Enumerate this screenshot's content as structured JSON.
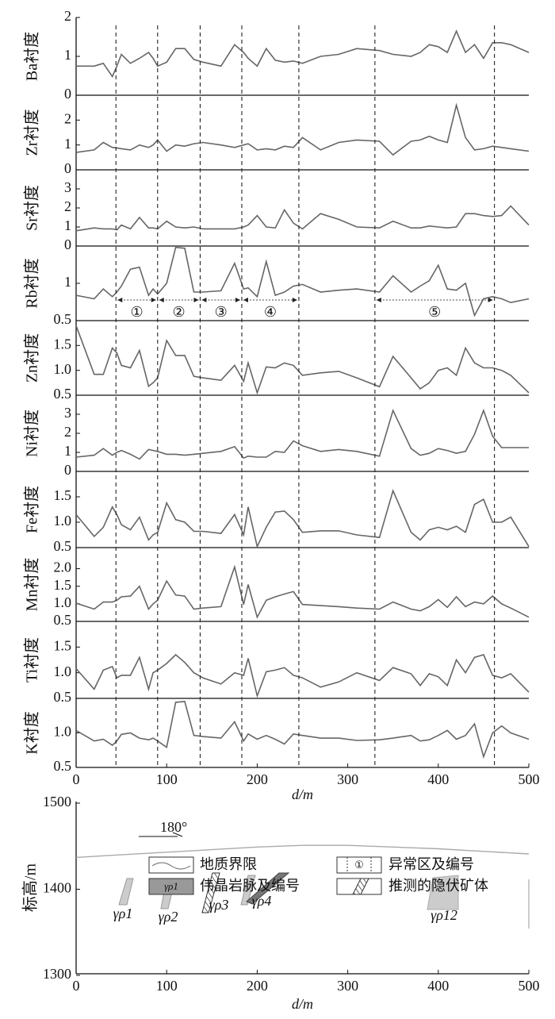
{
  "chart_data": [
    {
      "type": "line",
      "ylabel": "Ba衬度",
      "xlim": [
        0,
        500
      ],
      "ylim": [
        0,
        2
      ],
      "yticks": [
        0,
        1,
        2
      ],
      "color": "#666666",
      "x": [
        0,
        20,
        30,
        40,
        45,
        50,
        60,
        70,
        80,
        85,
        90,
        100,
        110,
        120,
        130,
        140,
        160,
        175,
        185,
        190,
        200,
        210,
        220,
        230,
        240,
        250,
        270,
        290,
        310,
        335,
        350,
        370,
        380,
        390,
        400,
        410,
        420,
        430,
        440,
        450,
        460,
        470,
        480,
        500
      ],
      "values": [
        0.75,
        0.75,
        0.82,
        0.48,
        0.75,
        1.05,
        0.82,
        0.95,
        1.1,
        0.95,
        0.75,
        0.85,
        1.2,
        1.2,
        0.92,
        0.85,
        0.75,
        1.3,
        1.1,
        0.95,
        0.75,
        1.2,
        0.9,
        0.85,
        0.88,
        0.82,
        1.0,
        1.05,
        1.2,
        1.15,
        1.05,
        1.0,
        1.1,
        1.3,
        1.25,
        1.1,
        1.65,
        1.1,
        1.3,
        0.95,
        1.35,
        1.35,
        1.3,
        1.1
      ]
    },
    {
      "type": "line",
      "ylabel": "Zr衬度",
      "xlim": [
        0,
        500
      ],
      "ylim": [
        0,
        3
      ],
      "yticks": [
        0,
        1,
        2
      ],
      "color": "#666666",
      "x": [
        0,
        20,
        30,
        40,
        45,
        50,
        60,
        70,
        80,
        85,
        90,
        100,
        110,
        120,
        130,
        140,
        160,
        175,
        185,
        190,
        200,
        210,
        220,
        230,
        240,
        250,
        270,
        290,
        310,
        335,
        350,
        370,
        380,
        390,
        400,
        410,
        420,
        430,
        440,
        450,
        460,
        470,
        480,
        500
      ],
      "values": [
        0.7,
        0.8,
        1.1,
        0.9,
        0.88,
        0.85,
        0.8,
        1.0,
        0.9,
        1.0,
        1.2,
        0.75,
        1.0,
        0.95,
        1.05,
        1.1,
        1.0,
        0.9,
        1.0,
        1.05,
        0.8,
        0.85,
        0.8,
        0.95,
        0.9,
        1.3,
        0.8,
        1.1,
        1.2,
        1.15,
        0.6,
        1.15,
        1.2,
        1.35,
        1.2,
        1.1,
        2.6,
        1.3,
        0.8,
        0.85,
        0.95,
        0.9,
        0.85,
        0.75
      ]
    },
    {
      "type": "line",
      "ylabel": "Sr衬度",
      "xlim": [
        0,
        500
      ],
      "ylim": [
        0,
        4
      ],
      "yticks": [
        0,
        1,
        2,
        3
      ],
      "color": "#666666",
      "x": [
        0,
        20,
        30,
        40,
        45,
        50,
        60,
        70,
        80,
        85,
        90,
        100,
        110,
        120,
        130,
        140,
        160,
        175,
        185,
        190,
        200,
        210,
        220,
        230,
        240,
        250,
        270,
        290,
        310,
        335,
        350,
        370,
        380,
        390,
        400,
        410,
        420,
        430,
        440,
        450,
        460,
        470,
        480,
        500
      ],
      "values": [
        0.8,
        0.95,
        0.9,
        0.9,
        0.85,
        1.1,
        0.9,
        1.5,
        0.95,
        0.95,
        0.9,
        1.3,
        1.0,
        0.95,
        1.0,
        0.9,
        0.9,
        0.9,
        1.0,
        1.1,
        1.6,
        1.0,
        0.95,
        1.9,
        1.2,
        0.9,
        1.7,
        1.4,
        1.0,
        0.95,
        1.3,
        0.95,
        0.95,
        1.05,
        1.0,
        0.95,
        1.0,
        1.7,
        1.7,
        1.6,
        1.55,
        1.6,
        2.1,
        1.1
      ]
    },
    {
      "type": "line",
      "ylabel": "Rb衬度",
      "log": true,
      "xlim": [
        0,
        500
      ],
      "ylim": [
        0.5,
        2
      ],
      "yticks": [
        0.5,
        1
      ],
      "color": "#666666",
      "x": [
        0,
        20,
        30,
        40,
        45,
        50,
        60,
        70,
        80,
        85,
        90,
        100,
        110,
        120,
        130,
        140,
        160,
        175,
        185,
        190,
        200,
        210,
        220,
        230,
        240,
        250,
        270,
        290,
        310,
        335,
        350,
        370,
        380,
        390,
        400,
        410,
        420,
        430,
        440,
        450,
        460,
        470,
        480,
        500
      ],
      "values": [
        0.8,
        0.75,
        0.9,
        0.78,
        0.85,
        0.95,
        1.3,
        1.35,
        0.8,
        0.9,
        0.82,
        1.0,
        1.95,
        1.92,
        0.85,
        0.85,
        0.87,
        1.45,
        0.9,
        0.92,
        0.78,
        1.5,
        0.8,
        0.85,
        0.95,
        0.98,
        0.85,
        0.88,
        0.9,
        0.85,
        1.15,
        0.85,
        0.95,
        1.05,
        1.4,
        0.9,
        0.88,
        1.0,
        0.55,
        0.75,
        0.78,
        0.75,
        0.7,
        0.75
      ]
    },
    {
      "type": "line",
      "ylabel": "Zn衬度",
      "xlim": [
        0,
        500
      ],
      "ylim": [
        0.5,
        2
      ],
      "yticks": [
        0.5,
        {
          "value": 1,
          "label": "1.0"
        },
        1.5
      ],
      "color": "#666666",
      "x": [
        0,
        20,
        30,
        40,
        45,
        50,
        60,
        70,
        80,
        85,
        90,
        100,
        110,
        120,
        130,
        140,
        160,
        175,
        185,
        190,
        200,
        210,
        220,
        230,
        240,
        250,
        270,
        290,
        310,
        335,
        350,
        370,
        380,
        390,
        400,
        410,
        420,
        430,
        440,
        450,
        460,
        470,
        480,
        500
      ],
      "values": [
        1.9,
        0.92,
        0.92,
        1.45,
        1.35,
        1.1,
        1.05,
        1.4,
        0.68,
        0.75,
        0.85,
        1.6,
        1.3,
        1.3,
        0.88,
        0.85,
        0.8,
        1.1,
        0.78,
        1.15,
        0.55,
        1.07,
        1.05,
        1.15,
        1.1,
        0.9,
        0.95,
        0.98,
        0.85,
        0.67,
        1.28,
        0.85,
        0.63,
        0.75,
        1.0,
        1.05,
        0.9,
        1.45,
        1.15,
        1.05,
        1.05,
        1.0,
        0.9,
        0.55
      ]
    },
    {
      "type": "line",
      "ylabel": "Ni衬度",
      "xlim": [
        0,
        500
      ],
      "ylim": [
        0,
        4
      ],
      "yticks": [
        0,
        1,
        2,
        3
      ],
      "color": "#666666",
      "x": [
        0,
        20,
        30,
        40,
        45,
        50,
        60,
        70,
        80,
        85,
        90,
        100,
        110,
        120,
        130,
        140,
        160,
        175,
        185,
        190,
        200,
        210,
        220,
        230,
        240,
        250,
        270,
        290,
        310,
        335,
        350,
        370,
        380,
        390,
        400,
        410,
        420,
        430,
        440,
        450,
        460,
        470,
        480,
        500
      ],
      "values": [
        0.75,
        0.85,
        1.2,
        0.85,
        1.0,
        1.1,
        0.9,
        0.65,
        1.15,
        1.1,
        1.05,
        0.9,
        0.9,
        0.85,
        0.9,
        0.95,
        1.05,
        1.3,
        0.7,
        0.8,
        0.75,
        0.75,
        1.05,
        1.0,
        1.6,
        1.35,
        1.05,
        1.15,
        1.05,
        0.8,
        3.2,
        1.2,
        0.85,
        0.95,
        1.2,
        1.1,
        0.95,
        1.05,
        1.95,
        3.2,
        1.85,
        1.25,
        1.25,
        1.25
      ]
    },
    {
      "type": "line",
      "ylabel": "Fe衬度",
      "xlim": [
        0,
        500
      ],
      "ylim": [
        0.5,
        2
      ],
      "yticks": [
        0.5,
        {
          "value": 1,
          "label": "1.0"
        },
        1.5
      ],
      "color": "#666666",
      "x": [
        0,
        20,
        30,
        40,
        45,
        50,
        60,
        70,
        80,
        85,
        90,
        100,
        110,
        120,
        130,
        140,
        160,
        175,
        185,
        190,
        200,
        210,
        220,
        230,
        240,
        250,
        270,
        290,
        310,
        335,
        350,
        370,
        380,
        390,
        400,
        410,
        420,
        430,
        440,
        450,
        460,
        470,
        480,
        500
      ],
      "values": [
        1.15,
        0.72,
        0.9,
        1.3,
        1.15,
        0.95,
        0.85,
        1.1,
        0.65,
        0.75,
        0.8,
        1.38,
        1.05,
        1.0,
        0.82,
        0.82,
        0.78,
        1.15,
        0.75,
        1.3,
        0.52,
        0.9,
        1.2,
        1.22,
        1.05,
        0.8,
        0.83,
        0.83,
        0.75,
        0.7,
        1.62,
        0.8,
        0.65,
        0.85,
        0.9,
        0.85,
        0.92,
        0.8,
        1.35,
        1.45,
        1.0,
        1.0,
        1.1,
        0.52
      ]
    },
    {
      "type": "line",
      "ylabel": "Mn衬度",
      "xlim": [
        0,
        500
      ],
      "ylim": [
        0.5,
        2.6
      ],
      "yticks": [
        0.5,
        {
          "value": 1,
          "label": "1.0"
        },
        1.5,
        {
          "value": 2,
          "label": "2.0"
        }
      ],
      "color": "#666666",
      "x": [
        0,
        20,
        30,
        40,
        45,
        50,
        60,
        70,
        80,
        85,
        90,
        100,
        110,
        120,
        130,
        140,
        160,
        175,
        185,
        190,
        200,
        210,
        220,
        230,
        240,
        250,
        270,
        290,
        310,
        335,
        350,
        370,
        380,
        390,
        400,
        410,
        420,
        430,
        440,
        450,
        460,
        470,
        480,
        500
      ],
      "values": [
        1.02,
        0.85,
        1.05,
        1.05,
        1.1,
        1.2,
        1.22,
        1.5,
        0.85,
        1.0,
        1.1,
        1.65,
        1.25,
        1.22,
        0.85,
        0.88,
        0.92,
        2.05,
        0.98,
        1.55,
        0.62,
        1.1,
        1.2,
        1.28,
        1.35,
        0.98,
        0.95,
        0.92,
        0.88,
        0.85,
        1.05,
        0.85,
        0.8,
        0.92,
        1.12,
        0.9,
        1.2,
        0.92,
        1.05,
        1.0,
        1.22,
        1.0,
        0.88,
        0.62
      ]
    },
    {
      "type": "line",
      "ylabel": "Ti衬度",
      "xlim": [
        0,
        500
      ],
      "ylim": [
        0.5,
        2
      ],
      "yticks": [
        0.5,
        {
          "value": 1,
          "label": "1.0"
        },
        1.5
      ],
      "color": "#666666",
      "x": [
        0,
        20,
        30,
        40,
        45,
        50,
        60,
        70,
        80,
        85,
        90,
        100,
        110,
        120,
        130,
        140,
        160,
        175,
        185,
        190,
        200,
        210,
        220,
        230,
        240,
        250,
        270,
        290,
        310,
        335,
        350,
        370,
        380,
        390,
        400,
        410,
        420,
        430,
        440,
        450,
        460,
        470,
        480,
        500
      ],
      "values": [
        1.08,
        0.68,
        1.05,
        1.12,
        0.9,
        0.95,
        0.95,
        1.3,
        0.68,
        1.0,
        1.05,
        1.18,
        1.35,
        1.2,
        1.0,
        0.9,
        0.78,
        1.0,
        0.95,
        1.28,
        0.55,
        1.02,
        1.05,
        1.1,
        0.95,
        0.9,
        0.72,
        0.82,
        1.0,
        0.85,
        1.1,
        0.98,
        0.75,
        0.98,
        0.92,
        0.75,
        1.25,
        1.0,
        1.3,
        1.35,
        0.95,
        0.9,
        0.98,
        0.62
      ]
    },
    {
      "type": "line",
      "ylabel": "K衬度",
      "log": true,
      "xlim": [
        0,
        500
      ],
      "ylim": [
        0.5,
        2
      ],
      "yticks": [
        0.5,
        {
          "value": 1,
          "label": "1.0"
        }
      ],
      "xticks": [
        0,
        100,
        200,
        300,
        400,
        500
      ],
      "xlabel": "d/m",
      "color": "#666666",
      "x": [
        0,
        20,
        30,
        40,
        45,
        50,
        60,
        70,
        80,
        85,
        90,
        100,
        110,
        120,
        130,
        140,
        160,
        175,
        185,
        190,
        200,
        210,
        220,
        230,
        240,
        250,
        270,
        290,
        310,
        335,
        350,
        370,
        380,
        390,
        400,
        410,
        420,
        430,
        440,
        450,
        460,
        470,
        480,
        500
      ],
      "values": [
        1.05,
        0.85,
        0.88,
        0.78,
        0.85,
        0.97,
        1.0,
        0.9,
        0.87,
        0.9,
        0.85,
        0.75,
        1.85,
        1.88,
        0.95,
        0.93,
        0.9,
        1.25,
        0.85,
        0.98,
        0.88,
        0.95,
        0.88,
        0.8,
        0.98,
        0.95,
        0.9,
        0.9,
        0.86,
        0.87,
        0.9,
        0.95,
        0.85,
        0.87,
        0.95,
        1.05,
        0.88,
        0.95,
        1.2,
        0.62,
        1.0,
        1.15,
        1.0,
        0.88
      ]
    },
    {
      "type": "section",
      "ylabel": "标高/m",
      "xlabel": "d/m",
      "xlim": [
        0,
        500
      ],
      "ylim": [
        1300,
        1500
      ],
      "xticks": [
        0,
        100,
        200,
        300,
        400,
        500
      ],
      "yticks": [
        1300,
        1400,
        1500
      ],
      "ground_x": [
        0,
        50,
        100,
        150,
        200,
        250,
        300,
        350,
        400,
        450,
        500
      ],
      "ground_elevation": [
        1437,
        1440,
        1443,
        1446,
        1449,
        1451,
        1451,
        1449,
        1447,
        1444,
        1441
      ],
      "strike": "180°",
      "veins": [
        "γρ1",
        "γρ2",
        "γρ3",
        "γρ4",
        "γρ12"
      ],
      "legend": [
        "地质界限",
        "异常区及编号",
        "伟晶岩脉及编号",
        "推测的隐伏矿体"
      ]
    }
  ],
  "anomaly_boundaries": [
    44,
    90,
    137,
    183,
    246,
    330,
    462
  ],
  "anomaly_zones": [
    {
      "label": "①",
      "start": 44,
      "end": 90
    },
    {
      "label": "②",
      "start": 90,
      "end": 137
    },
    {
      "label": "③",
      "start": 137,
      "end": 183
    },
    {
      "label": "④",
      "start": 183,
      "end": 246
    },
    {
      "label": "⑤",
      "start": 330,
      "end": 462
    }
  ]
}
